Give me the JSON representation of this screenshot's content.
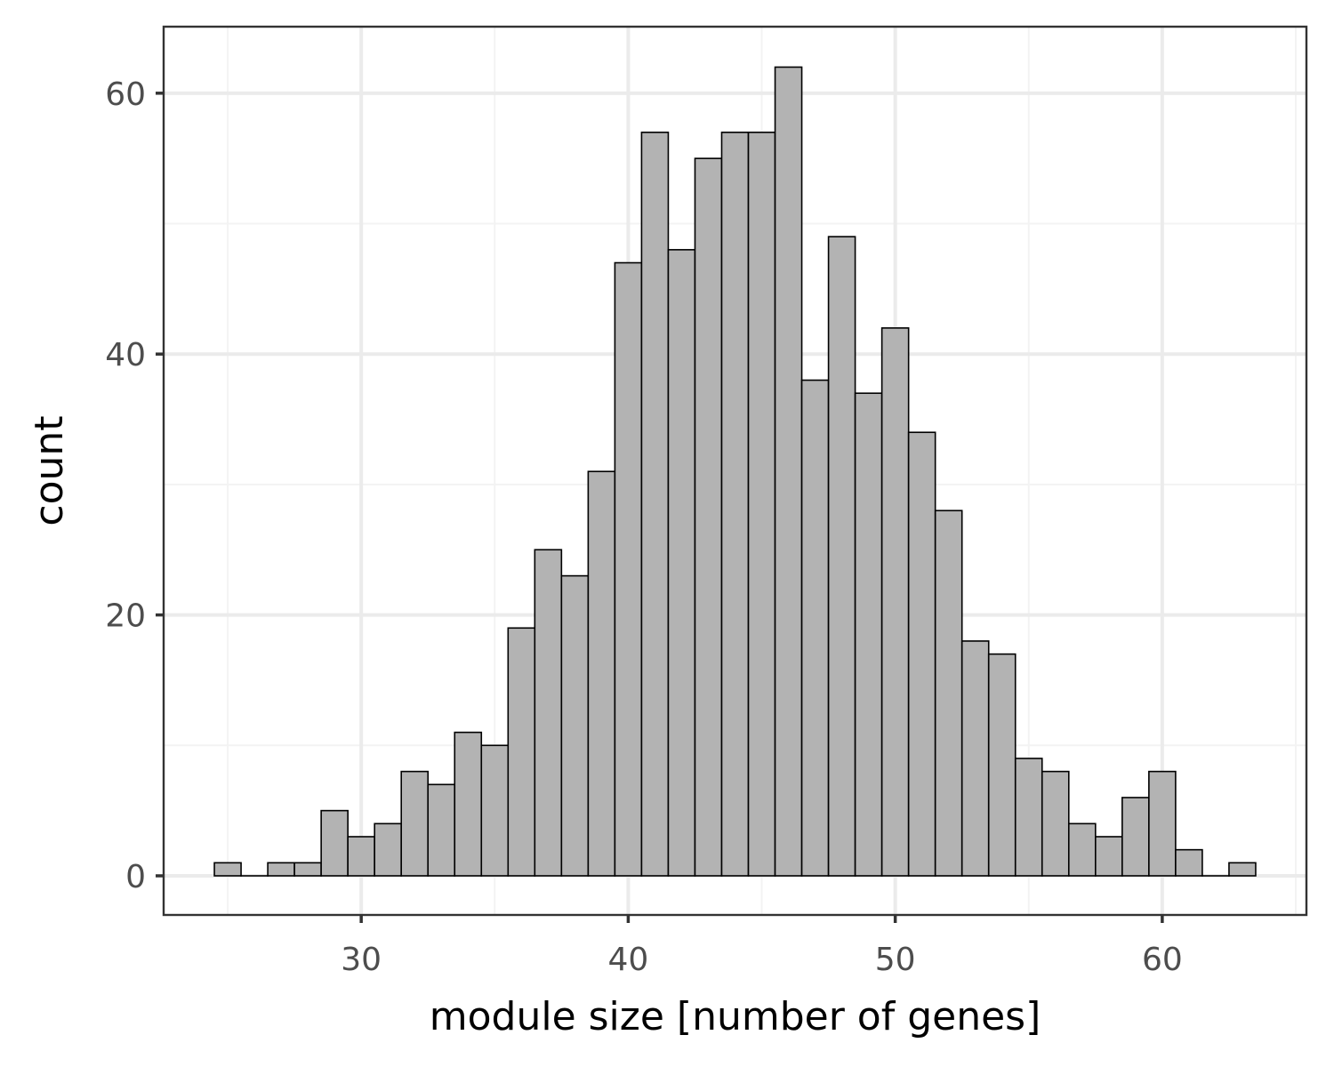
{
  "chart_data": {
    "type": "bar",
    "subtype": "histogram",
    "title": "",
    "xlabel": "module size [number of genes]",
    "ylabel": "count",
    "bin_width": 1,
    "categories": [
      25,
      26,
      27,
      28,
      29,
      30,
      31,
      32,
      33,
      34,
      35,
      36,
      37,
      38,
      39,
      40,
      41,
      42,
      43,
      44,
      45,
      46,
      47,
      48,
      49,
      50,
      51,
      52,
      53,
      54,
      55,
      56,
      57,
      58,
      59,
      60,
      61,
      62,
      63
    ],
    "values": [
      1,
      0,
      1,
      1,
      5,
      3,
      4,
      8,
      7,
      11,
      10,
      19,
      25,
      23,
      31,
      47,
      57,
      48,
      55,
      57,
      57,
      62,
      38,
      49,
      37,
      42,
      34,
      28,
      18,
      17,
      9,
      8,
      4,
      3,
      6,
      8,
      2,
      0,
      1
    ],
    "xlim": [
      22.6,
      65.4
    ],
    "ylim": [
      -3.0,
      65.1
    ],
    "x_ticks": [
      30,
      40,
      50,
      60
    ],
    "x_tick_labels": [
      "30",
      "40",
      "50",
      "60"
    ],
    "y_ticks": [
      0,
      20,
      40,
      60
    ],
    "y_tick_labels": [
      "0",
      "20",
      "40",
      "60"
    ],
    "grid": true,
    "legend": null,
    "colors": {
      "bar_fill": "#b3b3b3",
      "bar_stroke": "#000000",
      "panel_border": "#333333",
      "grid_major": "#ebebeb",
      "grid_minor": "#f3f3f3",
      "tick_text": "#4d4d4d"
    }
  }
}
